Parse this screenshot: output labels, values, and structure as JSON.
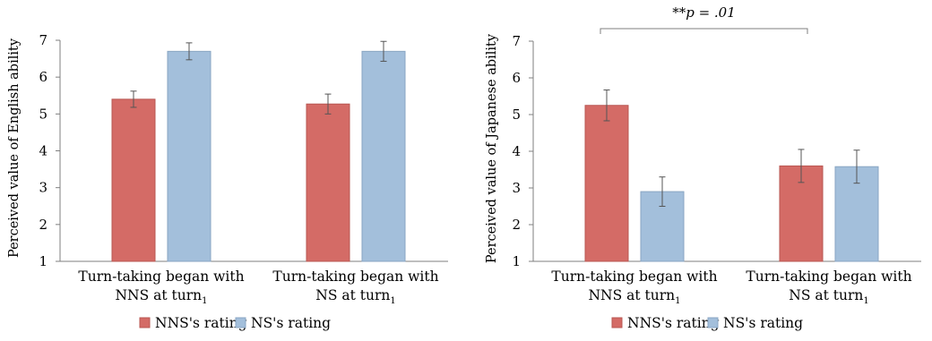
{
  "colors": {
    "nns": "#d46b66",
    "ns": "#a3bfdb",
    "nns_stroke": "#b95752",
    "ns_stroke": "#8aa6c3",
    "axis": "#7f7f7f",
    "error": "#555555"
  },
  "chart_data": [
    {
      "type": "bar",
      "ylabel": "Perceived value of English ability",
      "ylim": [
        1,
        7
      ],
      "yticks": [
        "1",
        "2",
        "3",
        "4",
        "5",
        "6",
        "7"
      ],
      "categories": [
        {
          "line1": "Turn-taking began with",
          "line2": "NNS at turn",
          "sub": "1"
        },
        {
          "line1": "Turn-taking began with",
          "line2": "NS at turn",
          "sub": "1"
        }
      ],
      "series": [
        {
          "name": "NNS's rating",
          "values": [
            5.4,
            5.27
          ],
          "errors": [
            0.22,
            0.27
          ]
        },
        {
          "name": "NS's rating",
          "values": [
            6.7,
            6.7
          ],
          "errors": [
            0.23,
            0.27
          ]
        }
      ],
      "legend": "bottom"
    },
    {
      "type": "bar",
      "ylabel": "Perceived value of Japanese ability",
      "ylim": [
        1,
        7
      ],
      "yticks": [
        "1",
        "2",
        "3",
        "4",
        "5",
        "6",
        "7"
      ],
      "categories": [
        {
          "line1": "Turn-taking began with",
          "line2": "NNS at turn",
          "sub": "1"
        },
        {
          "line1": "Turn-taking began with",
          "line2": "NS at turn",
          "sub": "1"
        }
      ],
      "series": [
        {
          "name": "NNS's rating",
          "values": [
            5.25,
            3.6
          ],
          "errors": [
            0.42,
            0.45
          ]
        },
        {
          "name": "NS's rating",
          "values": [
            2.9,
            3.58
          ],
          "errors": [
            0.4,
            0.45
          ]
        }
      ],
      "annotation": {
        "stars": "**",
        "p": "p",
        "text": " = .01"
      },
      "legend": "bottom"
    }
  ]
}
